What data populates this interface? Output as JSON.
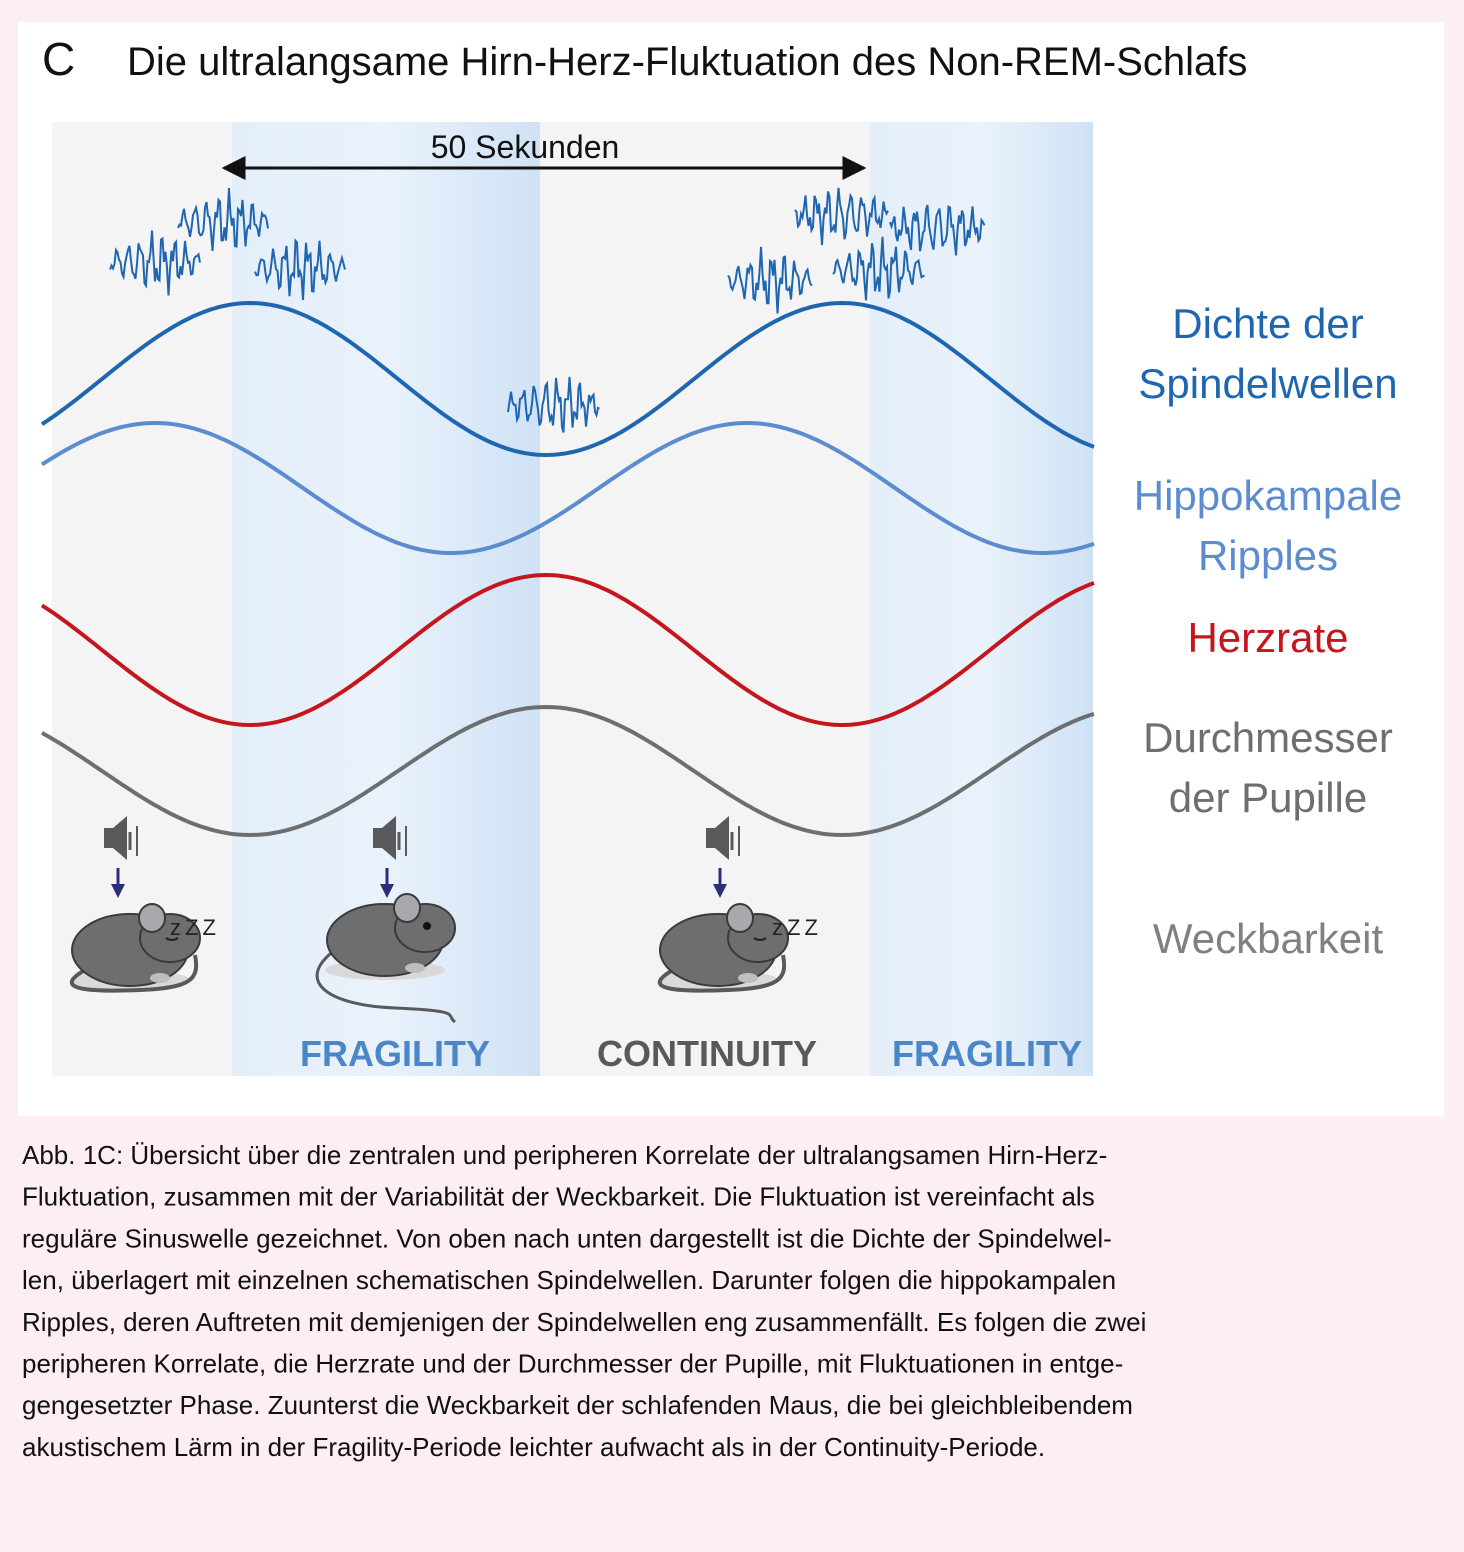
{
  "panel_label": "C",
  "title": "Die ultralangsame Hirn-Herz-Fluktuation des Non-REM-Schlafs",
  "scale_label": "50 Sekunden",
  "curve_labels": [
    {
      "lines": [
        "Dichte der",
        "Spindelwellen"
      ]
    },
    {
      "lines": [
        "Hippokampale",
        "Ripples"
      ]
    },
    {
      "lines": [
        "Herzrate"
      ]
    },
    {
      "lines": [
        "Durchmesser",
        "der Pupille"
      ]
    },
    {
      "lines": [
        "Weckbarkeit"
      ]
    }
  ],
  "sleep_marks": [
    "zZZ",
    "zZZ"
  ],
  "period_labels": [
    "FRAGILITY",
    "CONTINUITY",
    "FRAGILITY"
  ],
  "caption": [
    "Abb. 1C: Übersicht über die zentralen und peripheren Korrelate der ultralangsamen Hirn-Herz-",
    "Fluktuation, zusammen mit der Variabilität der Weckbarkeit. Die Fluktuation ist vereinfacht als",
    "reguläre Sinuswelle gezeichnet. Von oben nach unten dargestellt ist die Dichte der Spindelwel-",
    "len, überlagert mit einzelnen schematischen Spindelwellen. Darunter folgen die hippokampalen",
    "Ripples, deren Auftreten mit demjenigen der Spindelwellen eng zusammenfällt. Es folgen die zwei",
    "peripheren Korrelate, die Herzrate und der Durchmesser der Pupille, mit Fluktuationen in entge-",
    "gengesetzter Phase. Zuunterst die Weckbarkeit der schlafenden Maus, die bei gleichbleibendem",
    "akustischem Lärm in der Fragility-Periode leichter aufwacht als in der Continuity-Periode."
  ]
}
